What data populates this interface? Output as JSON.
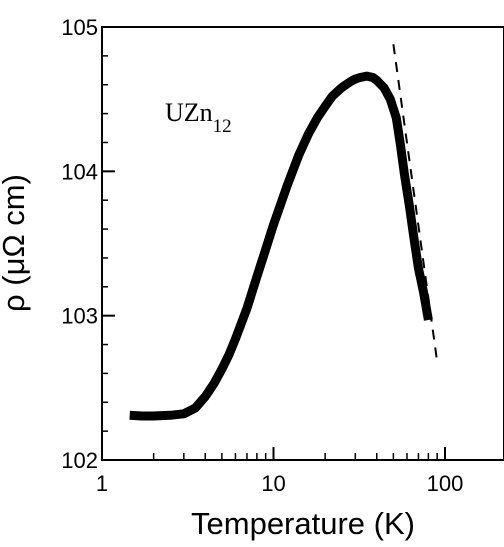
{
  "chart_data": {
    "type": "line",
    "title": "",
    "xlabel": "Temperature (K)",
    "ylabel": "ρ (μΩ cm)",
    "x_scale": "log",
    "xlim": [
      1,
      150
    ],
    "ylim": [
      102,
      105
    ],
    "x_ticks": [
      {
        "value": 1,
        "label": "1"
      },
      {
        "value": 10,
        "label": "10"
      },
      {
        "value": 100,
        "label": "100"
      }
    ],
    "y_ticks": [
      {
        "value": 102,
        "label": "102"
      },
      {
        "value": 103,
        "label": "103"
      },
      {
        "value": 104,
        "label": "104"
      },
      {
        "value": 105,
        "label": "105"
      }
    ],
    "grid": false,
    "legend": "none",
    "annotation": {
      "base": "UZn",
      "subscript": "12"
    },
    "colors": {
      "data": "#000000",
      "fit": "#000000"
    },
    "series": [
      {
        "style": "thick-solid",
        "x": [
          1.45,
          1.7,
          2.0,
          2.5,
          3.0,
          3.5,
          4.0,
          4.5,
          5.0,
          5.5,
          6.0,
          7.0,
          8.0,
          9.0,
          10,
          12,
          14,
          16,
          18,
          20,
          22,
          25,
          28,
          30,
          32,
          35,
          38,
          40,
          44,
          48,
          52,
          55,
          58,
          62,
          66,
          70,
          75,
          80
        ],
        "y": [
          102.31,
          102.305,
          102.305,
          102.31,
          102.32,
          102.36,
          102.44,
          102.53,
          102.63,
          102.73,
          102.84,
          103.05,
          103.27,
          103.46,
          103.63,
          103.9,
          104.11,
          104.26,
          104.37,
          104.45,
          104.52,
          104.58,
          104.62,
          104.64,
          104.65,
          104.66,
          104.65,
          104.63,
          104.58,
          104.5,
          104.37,
          104.18,
          103.98,
          103.76,
          103.53,
          103.33,
          103.16,
          102.97
        ]
      },
      {
        "style": "dashed-fit",
        "x": [
          50,
          90
        ],
        "y": [
          104.88,
          102.68
        ]
      }
    ]
  }
}
